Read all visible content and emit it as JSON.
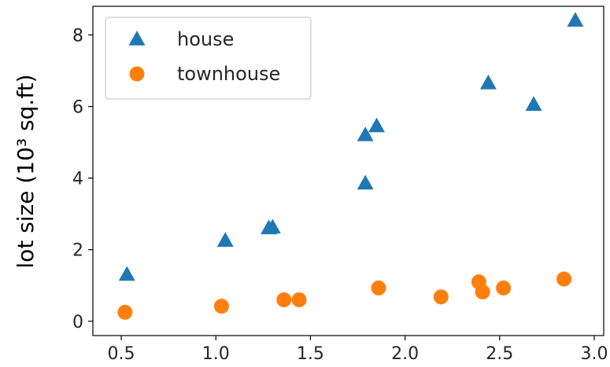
{
  "chart_data": {
    "type": "scatter",
    "title": "",
    "xlabel": "",
    "ylabel": "lot size (10³ sq.ft)",
    "xlim": [
      0.35,
      3.05
    ],
    "ylim": [
      -0.4,
      8.8
    ],
    "xticks": [
      0.5,
      1.0,
      1.5,
      2.0,
      2.5,
      3.0
    ],
    "xtick_labels": [
      "0.5",
      "1.0",
      "1.5",
      "2.0",
      "2.5",
      "3.0"
    ],
    "yticks": [
      0,
      2,
      4,
      6,
      8
    ],
    "ytick_labels": [
      "0",
      "2",
      "4",
      "6",
      "8"
    ],
    "grid": false,
    "legend_position": "top-left",
    "series": [
      {
        "name": "house",
        "marker": "triangle",
        "color": "#1f77b4",
        "points": [
          [
            0.53,
            1.3
          ],
          [
            1.05,
            2.25
          ],
          [
            1.28,
            2.6
          ],
          [
            1.3,
            2.62
          ],
          [
            1.79,
            3.85
          ],
          [
            1.79,
            5.2
          ],
          [
            1.85,
            5.45
          ],
          [
            2.44,
            6.65
          ],
          [
            2.68,
            6.05
          ],
          [
            2.9,
            8.4
          ]
        ]
      },
      {
        "name": "townhouse",
        "marker": "circle",
        "color": "#ff7f0e",
        "points": [
          [
            0.52,
            0.25
          ],
          [
            1.03,
            0.42
          ],
          [
            1.36,
            0.6
          ],
          [
            1.44,
            0.6
          ],
          [
            1.86,
            0.93
          ],
          [
            2.19,
            0.68
          ],
          [
            2.39,
            1.1
          ],
          [
            2.41,
            0.82
          ],
          [
            2.52,
            0.93
          ],
          [
            2.84,
            1.18
          ]
        ]
      }
    ]
  }
}
